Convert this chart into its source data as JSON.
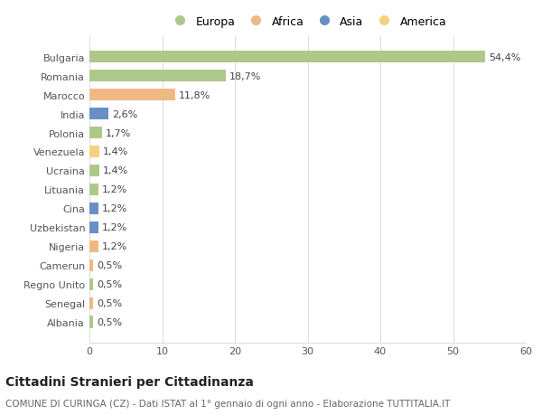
{
  "categories": [
    "Bulgaria",
    "Romania",
    "Marocco",
    "India",
    "Polonia",
    "Venezuela",
    "Ucraina",
    "Lituania",
    "Cina",
    "Uzbekistan",
    "Nigeria",
    "Camerun",
    "Regno Unito",
    "Senegal",
    "Albania"
  ],
  "values": [
    54.4,
    18.7,
    11.8,
    2.6,
    1.7,
    1.4,
    1.4,
    1.2,
    1.2,
    1.2,
    1.2,
    0.5,
    0.5,
    0.5,
    0.5
  ],
  "labels": [
    "54,4%",
    "18,7%",
    "11,8%",
    "2,6%",
    "1,7%",
    "1,4%",
    "1,4%",
    "1,2%",
    "1,2%",
    "1,2%",
    "1,2%",
    "0,5%",
    "0,5%",
    "0,5%",
    "0,5%"
  ],
  "colors": [
    "#adc98a",
    "#adc98a",
    "#f0b984",
    "#6a8fc4",
    "#adc98a",
    "#f5d080",
    "#adc98a",
    "#adc98a",
    "#6a8fc4",
    "#6a8fc4",
    "#f0b984",
    "#f0b984",
    "#adc98a",
    "#f0b984",
    "#adc98a"
  ],
  "legend": [
    {
      "label": "Europa",
      "color": "#adc98a"
    },
    {
      "label": "Africa",
      "color": "#f0b984"
    },
    {
      "label": "Asia",
      "color": "#6a8fc4"
    },
    {
      "label": "America",
      "color": "#f5d080"
    }
  ],
  "xlim": [
    0,
    60
  ],
  "xticks": [
    0,
    10,
    20,
    30,
    40,
    50,
    60
  ],
  "title": "Cittadini Stranieri per Cittadinanza",
  "subtitle": "COMUNE DI CURINGA (CZ) - Dati ISTAT al 1° gennaio di ogni anno - Elaborazione TUTTITALIA.IT",
  "background_color": "#ffffff",
  "grid_color": "#dddddd",
  "bar_height": 0.65,
  "label_fontsize": 8,
  "tick_fontsize": 8,
  "title_fontsize": 10,
  "subtitle_fontsize": 7.5
}
